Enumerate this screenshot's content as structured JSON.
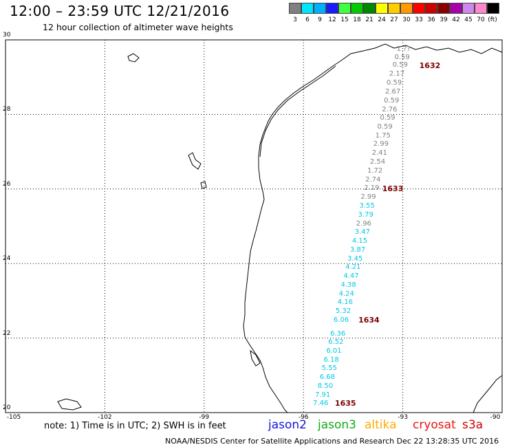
{
  "header": {
    "title": "12:00 – 23:59 UTC 12/21/2016",
    "subtitle": "12 hour collection of altimeter wave heights"
  },
  "color_scale": {
    "unit": "(ft)",
    "bins": [
      {
        "label": "3",
        "color": "#808080"
      },
      {
        "label": "6",
        "color": "#00e5ff"
      },
      {
        "label": "9",
        "color": "#00b0ff"
      },
      {
        "label": "12",
        "color": "#1a1aff"
      },
      {
        "label": "15",
        "color": "#40ff40"
      },
      {
        "label": "18",
        "color": "#00cc00"
      },
      {
        "label": "21",
        "color": "#008800"
      },
      {
        "label": "24",
        "color": "#ffff00"
      },
      {
        "label": "27",
        "color": "#ffcc00"
      },
      {
        "label": "30",
        "color": "#ff9900"
      },
      {
        "label": "33",
        "color": "#ff0000"
      },
      {
        "label": "36",
        "color": "#cc0000"
      },
      {
        "label": "39",
        "color": "#880000"
      },
      {
        "label": "42",
        "color": "#aa00aa"
      },
      {
        "label": "45",
        "color": "#cc88ee"
      },
      {
        "label": "70",
        "color": "#ff88cc"
      },
      {
        "label": "",
        "color": "#000000"
      }
    ]
  },
  "axes": {
    "lat_labels": [
      "30",
      "28",
      "26",
      "24",
      "22",
      "20"
    ],
    "lon_labels": [
      "-105",
      "-102",
      "-99",
      "-96",
      "-93",
      "-90"
    ],
    "lat_range": [
      20,
      30
    ],
    "lon_range": [
      -105,
      -90
    ],
    "grid": "dotted"
  },
  "measurements": [
    {
      "value": "1.??",
      "lon": -92.98,
      "lat": 29.74,
      "color": "#808080"
    },
    {
      "value": "0.59",
      "lon": -93.02,
      "lat": 29.52,
      "color": "#808080"
    },
    {
      "value": "0.59",
      "lon": -93.08,
      "lat": 29.31,
      "color": "#808080"
    },
    {
      "value": "2.17",
      "lon": -93.18,
      "lat": 29.07,
      "color": "#808080"
    },
    {
      "value": "0.59",
      "lon": -93.26,
      "lat": 28.83,
      "color": "#808080"
    },
    {
      "value": "2.67",
      "lon": -93.3,
      "lat": 28.6,
      "color": "#808080"
    },
    {
      "value": "0.59",
      "lon": -93.34,
      "lat": 28.36,
      "color": "#808080"
    },
    {
      "value": "2.76",
      "lon": -93.4,
      "lat": 28.12,
      "color": "#808080"
    },
    {
      "value": "0.59",
      "lon": -93.46,
      "lat": 27.89,
      "color": "#808080"
    },
    {
      "value": "0.59",
      "lon": -93.54,
      "lat": 27.66,
      "color": "#808080"
    },
    {
      "value": "1.75",
      "lon": -93.6,
      "lat": 27.42,
      "color": "#808080"
    },
    {
      "value": "2.99",
      "lon": -93.66,
      "lat": 27.19,
      "color": "#808080"
    },
    {
      "value": "2.41",
      "lon": -93.7,
      "lat": 26.95,
      "color": "#808080"
    },
    {
      "value": "2.54",
      "lon": -93.76,
      "lat": 26.71,
      "color": "#808080"
    },
    {
      "value": "1.72",
      "lon": -93.84,
      "lat": 26.48,
      "color": "#808080"
    },
    {
      "value": "2.74",
      "lon": -93.9,
      "lat": 26.24,
      "color": "#808080"
    },
    {
      "value": "2.19",
      "lon": -93.94,
      "lat": 26.01,
      "color": "#808080"
    },
    {
      "value": "2.99",
      "lon": -94.04,
      "lat": 25.77,
      "color": "#808080"
    },
    {
      "value": "3.55",
      "lon": -94.08,
      "lat": 25.53,
      "color": "#00c8e6"
    },
    {
      "value": "3.79",
      "lon": -94.12,
      "lat": 25.3,
      "color": "#00c8e6"
    },
    {
      "value": "2.96",
      "lon": -94.18,
      "lat": 25.06,
      "color": "#808080"
    },
    {
      "value": "3.47",
      "lon": -94.22,
      "lat": 24.83,
      "color": "#00c8e6"
    },
    {
      "value": "4.15",
      "lon": -94.3,
      "lat": 24.6,
      "color": "#00c8e6"
    },
    {
      "value": "3.87",
      "lon": -94.36,
      "lat": 24.36,
      "color": "#00c8e6"
    },
    {
      "value": "3.45",
      "lon": -94.44,
      "lat": 24.12,
      "color": "#00c8e6"
    },
    {
      "value": "4.21",
      "lon": -94.5,
      "lat": 23.89,
      "color": "#00c8e6"
    },
    {
      "value": "4.47",
      "lon": -94.56,
      "lat": 23.65,
      "color": "#00c8e6"
    },
    {
      "value": "4.38",
      "lon": -94.64,
      "lat": 23.41,
      "color": "#00c8e6"
    },
    {
      "value": "4.24",
      "lon": -94.7,
      "lat": 23.18,
      "color": "#00c8e6"
    },
    {
      "value": "4.16",
      "lon": -94.74,
      "lat": 22.95,
      "color": "#00c8e6"
    },
    {
      "value": "5.32",
      "lon": -94.8,
      "lat": 22.71,
      "color": "#00c8e6"
    },
    {
      "value": "6.06",
      "lon": -94.86,
      "lat": 22.47,
      "color": "#00c8e6"
    },
    {
      "value": "6.36",
      "lon": -94.96,
      "lat": 22.11,
      "color": "#00c8e6"
    },
    {
      "value": "6.52",
      "lon": -95.02,
      "lat": 21.88,
      "color": "#00c8e6"
    },
    {
      "value": "6.01",
      "lon": -95.08,
      "lat": 21.65,
      "color": "#00c8e6"
    },
    {
      "value": "6.18",
      "lon": -95.16,
      "lat": 21.41,
      "color": "#00c8e6"
    },
    {
      "value": "5.55",
      "lon": -95.22,
      "lat": 21.18,
      "color": "#00c8e6"
    },
    {
      "value": "6.68",
      "lon": -95.28,
      "lat": 20.94,
      "color": "#00c8e6"
    },
    {
      "value": "8.50",
      "lon": -95.34,
      "lat": 20.71,
      "color": "#00c8e6"
    },
    {
      "value": "7.91",
      "lon": -95.42,
      "lat": 20.47,
      "color": "#00c8e6"
    },
    {
      "value": "7.46",
      "lon": -95.48,
      "lat": 20.24,
      "color": "#00c8e6"
    }
  ],
  "passes": [
    {
      "id": "1632",
      "lon": -92.5,
      "lat": 29.3
    },
    {
      "id": "1633",
      "lon": -93.62,
      "lat": 26.0
    },
    {
      "id": "1634",
      "lon": -94.34,
      "lat": 22.47
    },
    {
      "id": "1635",
      "lon": -95.05,
      "lat": 20.24
    }
  ],
  "footer": {
    "note": "note:  1) Time is in UTC;  2) SWH is in feet",
    "satellites": [
      {
        "name": "jason2",
        "color": "#1010dd"
      },
      {
        "name": "jason3",
        "color": "#11aa11"
      },
      {
        "name": "altika",
        "color": "#ffaa00"
      },
      {
        "name": "cryosat",
        "color": "#ee1111"
      },
      {
        "name": "s3a",
        "color": "#cc0000"
      }
    ],
    "credit": "NOAA/NESDIS Center for Satellite Applications and Research     Dec 22 13:28:35 UTC 2016"
  }
}
